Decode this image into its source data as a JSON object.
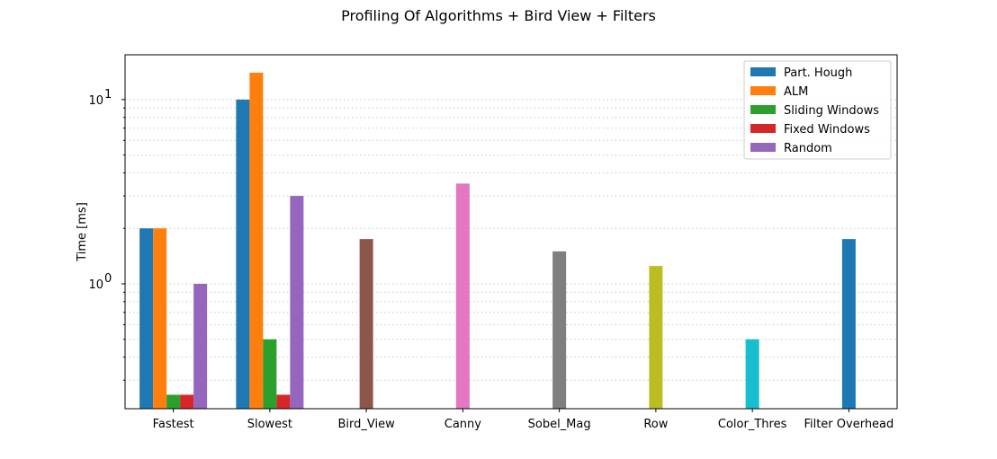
{
  "chart_data": {
    "type": "bar",
    "title": "Profiling Of Algorithms + Bird View + Filters",
    "xlabel": "",
    "ylabel": "Time [ms]",
    "yscale": "log",
    "ylim": [
      0.21,
      17.5
    ],
    "y_tick_labels": [
      {
        "value": 1,
        "base": "10",
        "exp": "0"
      },
      {
        "value": 10,
        "base": "10",
        "exp": "1"
      }
    ],
    "grid": "horizontal dotted, major and minor",
    "legend_position": "top-right",
    "categories": [
      "Fastest",
      "Slowest",
      "Bird_View",
      "Canny",
      "Sobel_Mag",
      "Row",
      "Color_Thres",
      "Filter Overhead"
    ],
    "series": [
      {
        "name": "Part. Hough",
        "color": "#1f77b4",
        "values": [
          2.0,
          10.0,
          null,
          null,
          null,
          null,
          null,
          null
        ]
      },
      {
        "name": "ALM",
        "color": "#ff7f0e",
        "values": [
          2.0,
          14.0,
          null,
          null,
          null,
          null,
          null,
          null
        ]
      },
      {
        "name": "Sliding Windows",
        "color": "#2ca02c",
        "values": [
          0.25,
          0.5,
          null,
          null,
          null,
          null,
          null,
          null
        ]
      },
      {
        "name": "Fixed Windows",
        "color": "#d62728",
        "values": [
          0.25,
          0.25,
          null,
          null,
          null,
          null,
          null,
          null
        ]
      },
      {
        "name": "Random",
        "color": "#9467bd",
        "values": [
          1.0,
          3.0,
          null,
          null,
          null,
          null,
          null,
          null
        ]
      }
    ],
    "single_bars": [
      {
        "category": "Bird_View",
        "value": 1.75,
        "color": "#8c564b"
      },
      {
        "category": "Canny",
        "value": 3.5,
        "color": "#e377c2"
      },
      {
        "category": "Sobel_Mag",
        "value": 1.5,
        "color": "#7f7f7f"
      },
      {
        "category": "Row",
        "value": 1.25,
        "color": "#bcbd22"
      },
      {
        "category": "Color_Thres",
        "value": 0.5,
        "color": "#17becf"
      },
      {
        "category": "Filter Overhead",
        "value": 1.75,
        "color": "#1f77b4"
      }
    ]
  }
}
